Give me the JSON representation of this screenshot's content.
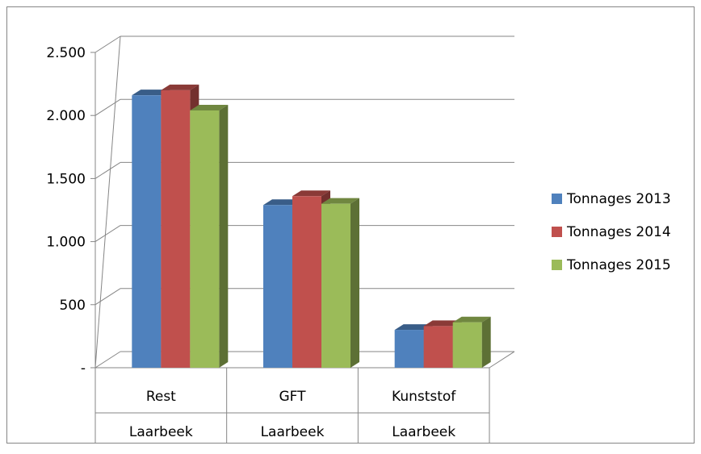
{
  "chart_data": {
    "type": "bar",
    "categories": [
      {
        "label": "Rest",
        "group": "Laarbeek"
      },
      {
        "label": "GFT",
        "group": "Laarbeek"
      },
      {
        "label": "Kunststof",
        "group": "Laarbeek"
      }
    ],
    "series": [
      {
        "name": "Tonnages 2013",
        "color": "#4f81bd",
        "values": [
          2160,
          1290,
          300
        ]
      },
      {
        "name": "Tonnages 2014",
        "color": "#c0504d",
        "values": [
          2200,
          1360,
          330
        ]
      },
      {
        "name": "Tonnages 2015",
        "color": "#9bbb59",
        "values": [
          2040,
          1300,
          360
        ]
      }
    ],
    "ylim": [
      0,
      2500
    ],
    "yticks": [
      {
        "value": 0,
        "label": "-"
      },
      {
        "value": 500,
        "label": "500"
      },
      {
        "value": 1000,
        "label": "1.000"
      },
      {
        "value": 1500,
        "label": "1.500"
      },
      {
        "value": 2000,
        "label": "2.000"
      },
      {
        "value": 2500,
        "label": "2.500"
      }
    ],
    "grid": true,
    "legend_position": "right",
    "title": "",
    "xlabel": "",
    "ylabel": ""
  }
}
